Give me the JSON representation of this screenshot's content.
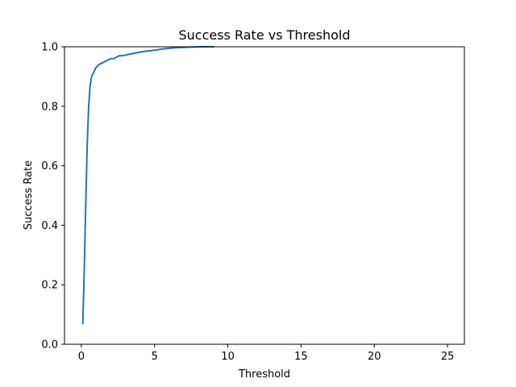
{
  "chart_data": {
    "type": "line",
    "title": "Success Rate vs Threshold",
    "xlabel": "Threshold",
    "ylabel": "Success Rate",
    "xlim": [
      -1.15,
      26.15
    ],
    "ylim": [
      0.0,
      1.0
    ],
    "xticks": [
      0,
      5,
      10,
      15,
      20,
      25
    ],
    "yticks": [
      0.0,
      0.2,
      0.4,
      0.6,
      0.8,
      1.0
    ],
    "xtick_labels": [
      "0",
      "5",
      "10",
      "15",
      "20",
      "25"
    ],
    "ytick_labels": [
      "0.0",
      "0.2",
      "0.4",
      "0.6",
      "0.8",
      "1.0"
    ],
    "grid": false,
    "legend": "none",
    "series": [
      {
        "color": "#1f77b4",
        "x": [
          0.1,
          0.2,
          0.3,
          0.4,
          0.5,
          0.6,
          0.7,
          0.8,
          0.9,
          1.0,
          1.2,
          1.4,
          1.6,
          1.8,
          2.0,
          2.2,
          2.4,
          2.6,
          2.8,
          3.0,
          3.3,
          3.6,
          4.0,
          4.4,
          4.8,
          5.2,
          5.6,
          6.0,
          6.5,
          7.0,
          7.5,
          8.0,
          8.5,
          9.0
        ],
        "y": [
          0.07,
          0.25,
          0.47,
          0.67,
          0.8,
          0.87,
          0.9,
          0.91,
          0.92,
          0.93,
          0.94,
          0.945,
          0.95,
          0.955,
          0.96,
          0.96,
          0.965,
          0.97,
          0.97,
          0.972,
          0.975,
          0.978,
          0.982,
          0.985,
          0.987,
          0.99,
          0.993,
          0.995,
          0.997,
          0.998,
          0.999,
          1.0,
          1.0,
          1.0
        ]
      }
    ]
  }
}
